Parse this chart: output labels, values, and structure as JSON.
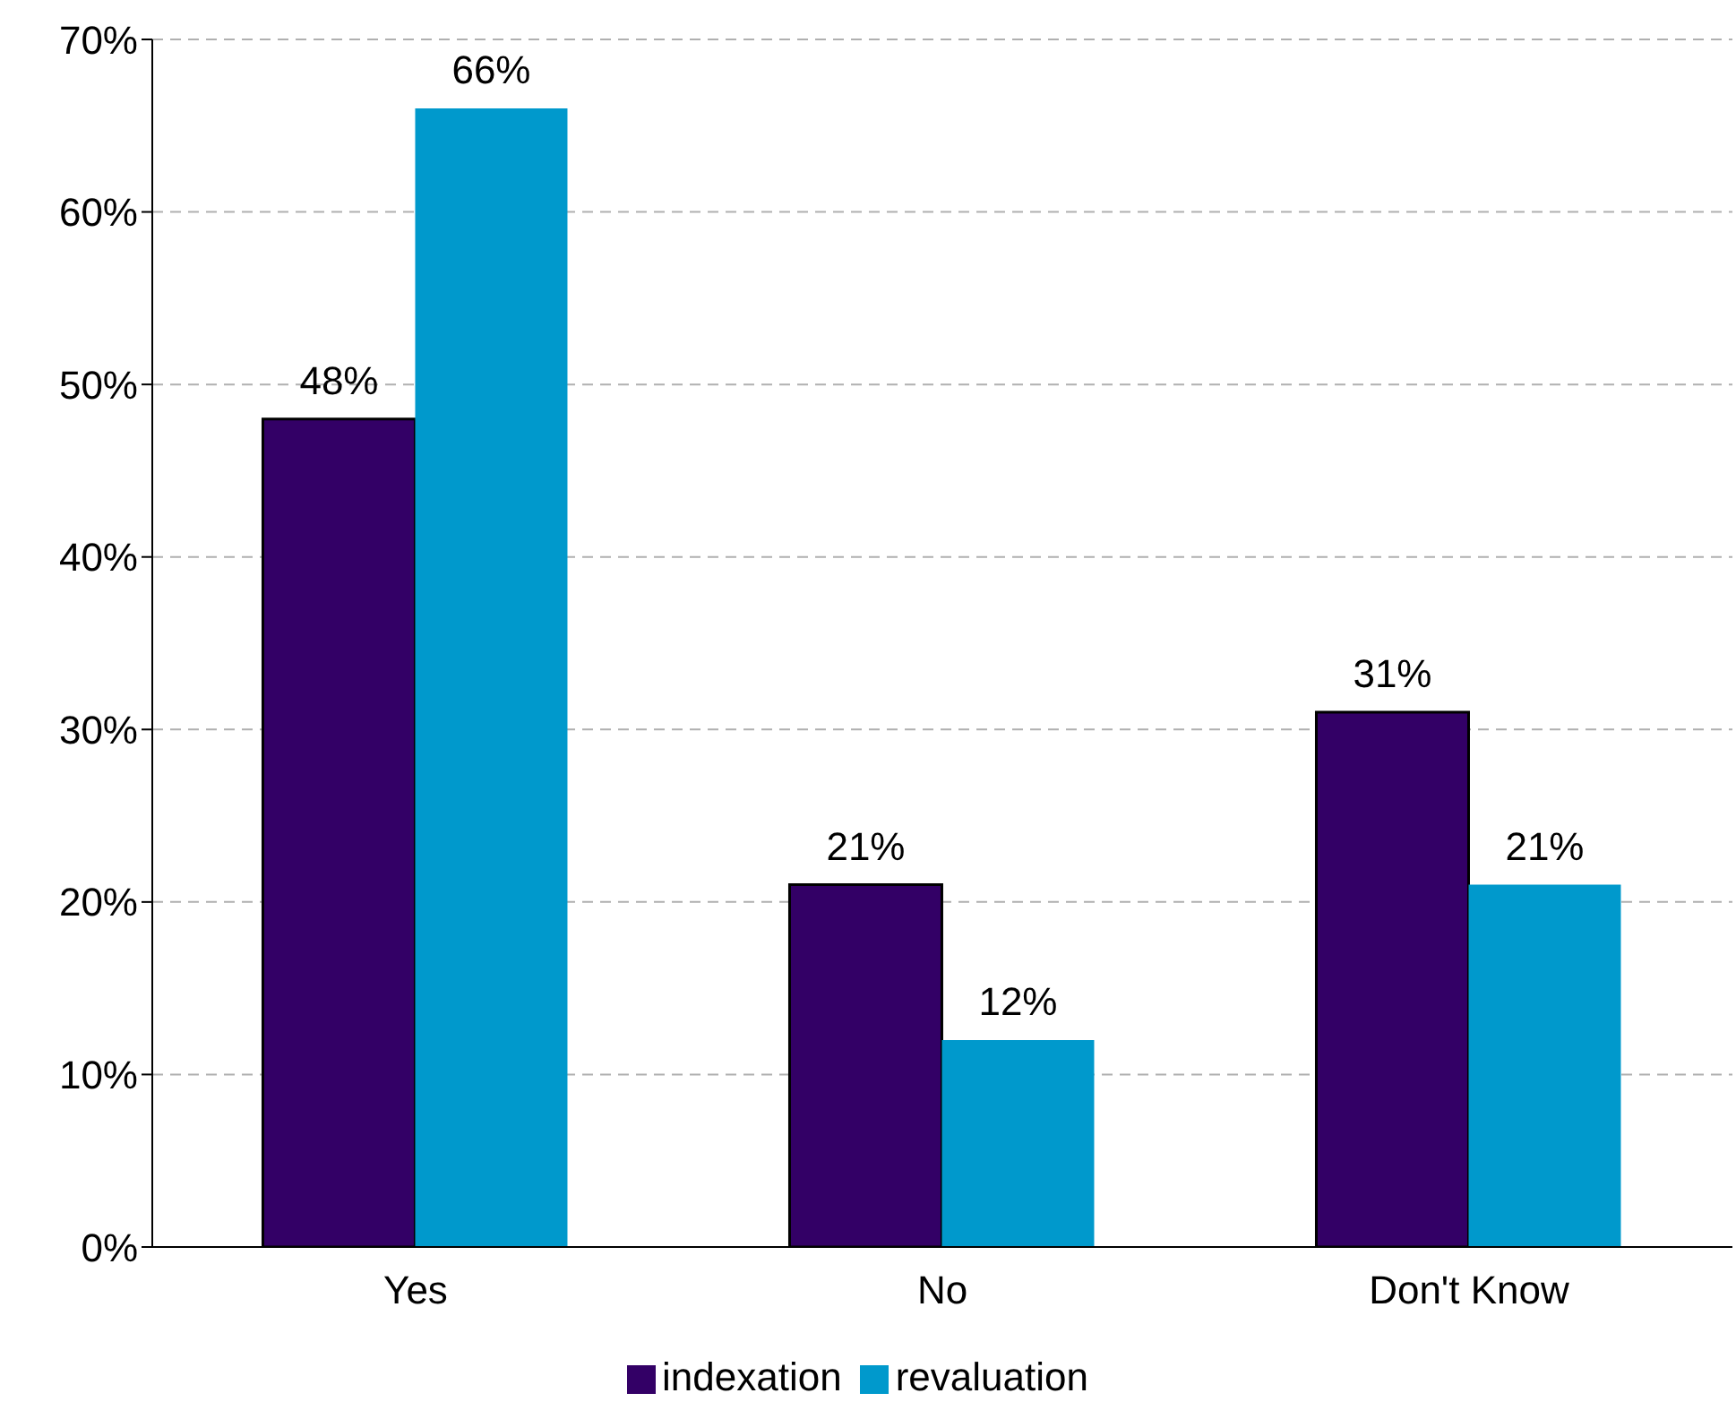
{
  "chart_data": {
    "type": "bar",
    "categories": [
      "Yes",
      "No",
      "Don't Know"
    ],
    "series": [
      {
        "name": "indexation",
        "color": "#330066",
        "values": [
          48,
          21,
          31
        ],
        "value_labels": [
          "48%",
          "21%",
          "31%"
        ]
      },
      {
        "name": "revaluation",
        "color": "#0099cc",
        "values": [
          66,
          12,
          21
        ],
        "value_labels": [
          "66%",
          "12%",
          "21%"
        ]
      }
    ],
    "ylim": [
      0,
      70
    ],
    "yticks": [
      {
        "value": 0,
        "label": "0%"
      },
      {
        "value": 10,
        "label": "10%"
      },
      {
        "value": 20,
        "label": "20%"
      },
      {
        "value": 30,
        "label": "30%"
      },
      {
        "value": 40,
        "label": "40%"
      },
      {
        "value": 50,
        "label": "50%"
      },
      {
        "value": 60,
        "label": "60%"
      },
      {
        "value": 70,
        "label": "70%"
      }
    ],
    "grid": "y",
    "legend": "bottom"
  }
}
